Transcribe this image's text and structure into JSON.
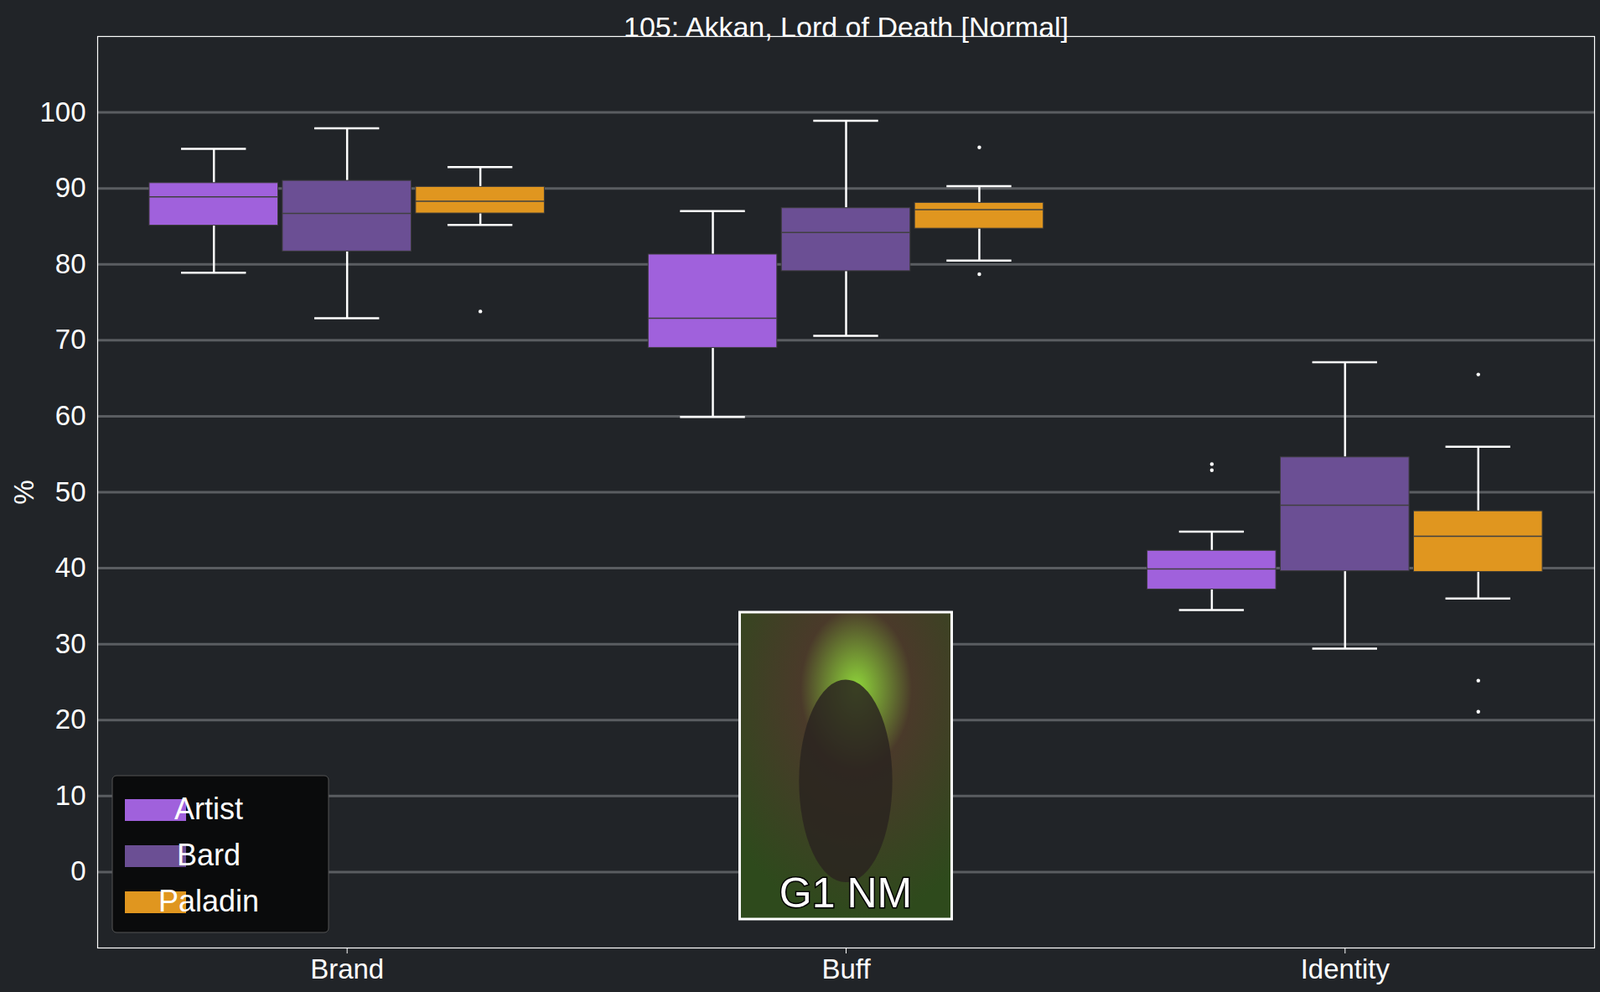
{
  "chart_data": {
    "type": "box",
    "title": "105: Akkan, Lord of Death [Normal]",
    "y_label": "%",
    "categories": [
      "Brand",
      "Buff",
      "Identity"
    ],
    "series": [
      {
        "name": "Artist",
        "color": "#a061dc",
        "values": [
          {
            "whisker_low": 78.9,
            "q1": 85.1,
            "median": 88.9,
            "q3": 90.7,
            "whisker_high": 95.2,
            "outliers": []
          },
          {
            "whisker_low": 59.9,
            "q1": 69.0,
            "median": 72.9,
            "q3": 81.3,
            "whisker_high": 87.0,
            "outliers": []
          },
          {
            "whisker_low": 34.5,
            "q1": 37.2,
            "median": 39.9,
            "q3": 42.3,
            "whisker_high": 44.8,
            "outliers": [
              52.9,
              53.7
            ]
          }
        ]
      },
      {
        "name": "Bard",
        "color": "#6b4f94",
        "values": [
          {
            "whisker_low": 72.9,
            "q1": 81.7,
            "median": 86.7,
            "q3": 91.0,
            "whisker_high": 97.9,
            "outliers": []
          },
          {
            "whisker_low": 70.6,
            "q1": 79.1,
            "median": 84.2,
            "q3": 87.4,
            "whisker_high": 98.9,
            "outliers": []
          },
          {
            "whisker_low": 29.4,
            "q1": 39.6,
            "median": 48.3,
            "q3": 54.6,
            "whisker_high": 67.1,
            "outliers": []
          }
        ]
      },
      {
        "name": "Paladin",
        "color": "#e0961f",
        "values": [
          {
            "whisker_low": 85.2,
            "q1": 86.7,
            "median": 88.3,
            "q3": 90.2,
            "whisker_high": 92.8,
            "outliers": [
              73.8
            ]
          },
          {
            "whisker_low": 80.5,
            "q1": 84.7,
            "median": 87.2,
            "q3": 88.1,
            "whisker_high": 90.3,
            "outliers": [
              78.7,
              95.4
            ]
          },
          {
            "whisker_low": 36.0,
            "q1": 39.5,
            "median": 44.2,
            "q3": 47.5,
            "whisker_high": 56.0,
            "outliers": [
              21.1,
              25.2,
              65.5
            ]
          }
        ]
      }
    ],
    "ylim": [
      -10,
      110
    ],
    "yticks": [
      0,
      10,
      20,
      30,
      40,
      50,
      60,
      70,
      80,
      90,
      100
    ],
    "grid": true,
    "legend": "lower left",
    "image_label": "G1 NM"
  }
}
